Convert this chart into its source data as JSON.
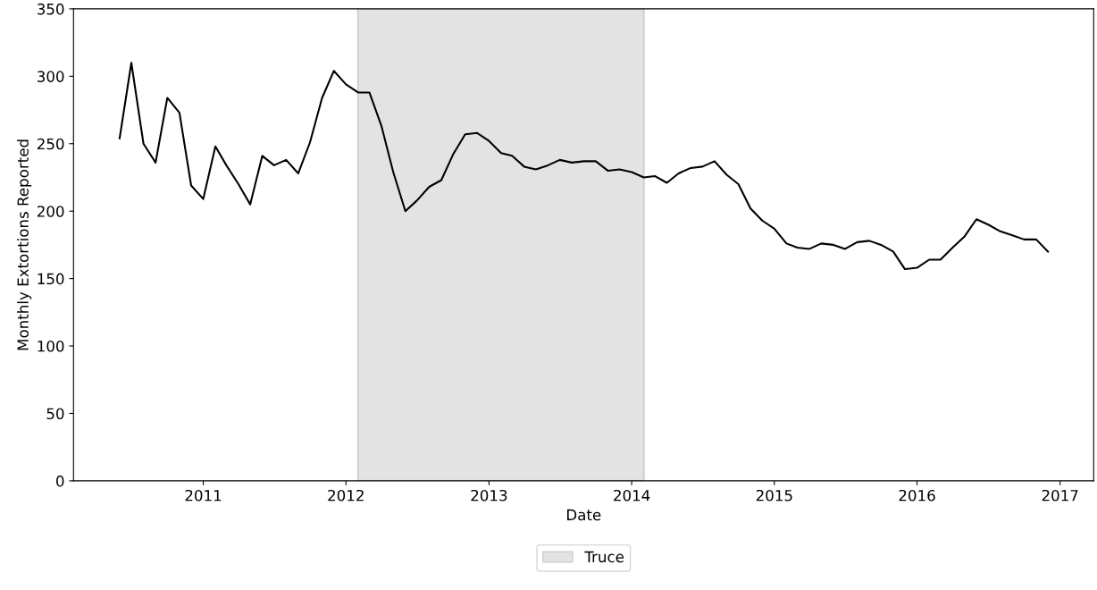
{
  "chart_data": {
    "type": "line",
    "xlabel": "Date",
    "ylabel": "Monthly Extortions Reported",
    "x": [
      "2010-06",
      "2010-07",
      "2010-08",
      "2010-09",
      "2010-10",
      "2010-11",
      "2010-12",
      "2011-01",
      "2011-02",
      "2011-03",
      "2011-04",
      "2011-05",
      "2011-06",
      "2011-07",
      "2011-08",
      "2011-09",
      "2011-10",
      "2011-11",
      "2011-12",
      "2012-01",
      "2012-02",
      "2012-03",
      "2012-04",
      "2012-05",
      "2012-06",
      "2012-07",
      "2012-08",
      "2012-09",
      "2012-10",
      "2012-11",
      "2012-12",
      "2013-01",
      "2013-02",
      "2013-03",
      "2013-04",
      "2013-05",
      "2013-06",
      "2013-07",
      "2013-08",
      "2013-09",
      "2013-10",
      "2013-11",
      "2013-12",
      "2014-01",
      "2014-02",
      "2014-03",
      "2014-04",
      "2014-05",
      "2014-06",
      "2014-07",
      "2014-08",
      "2014-09",
      "2014-10",
      "2014-11",
      "2014-12",
      "2015-01",
      "2015-02",
      "2015-03",
      "2015-04",
      "2015-05",
      "2015-06",
      "2015-07",
      "2015-08",
      "2015-09",
      "2015-10",
      "2015-11",
      "2015-12",
      "2016-01",
      "2016-02",
      "2016-03",
      "2016-04",
      "2016-05",
      "2016-06",
      "2016-07",
      "2016-08",
      "2016-09",
      "2016-10",
      "2016-11",
      "2016-12"
    ],
    "series": [
      {
        "color": "#000000",
        "values": [
          254,
          310,
          250,
          236,
          284,
          273,
          219,
          209,
          248,
          234,
          220,
          205,
          241,
          234,
          238,
          228,
          251,
          284,
          304,
          294,
          288,
          288,
          263,
          229,
          200,
          208,
          218,
          223,
          242,
          257,
          258,
          252,
          243,
          241,
          233,
          231,
          234,
          238,
          236,
          237,
          237,
          230,
          231,
          229,
          225,
          226,
          221,
          228,
          232,
          233,
          237,
          227,
          220,
          202,
          193,
          187,
          176,
          173,
          172,
          176,
          175,
          172,
          177,
          178,
          175,
          170,
          157,
          158,
          164,
          164,
          173,
          181,
          194,
          190,
          185,
          182,
          179,
          179,
          170
        ]
      }
    ],
    "bands": [
      {
        "axis": "x",
        "from": "2012-02-01",
        "to": "2014-02-01",
        "label": "Truce",
        "color": "#e3e3e3"
      }
    ],
    "xlim": [
      "2010-02-03",
      "2017-03-28"
    ],
    "xticks": [
      "2011",
      "2012",
      "2013",
      "2014",
      "2015",
      "2016",
      "2017"
    ],
    "ylim": [
      0,
      350
    ],
    "yticks": [
      0,
      50,
      100,
      150,
      200,
      250,
      300,
      350
    ],
    "grid": false,
    "legend": "bottom",
    "marker": "none",
    "line_style": "solid"
  }
}
